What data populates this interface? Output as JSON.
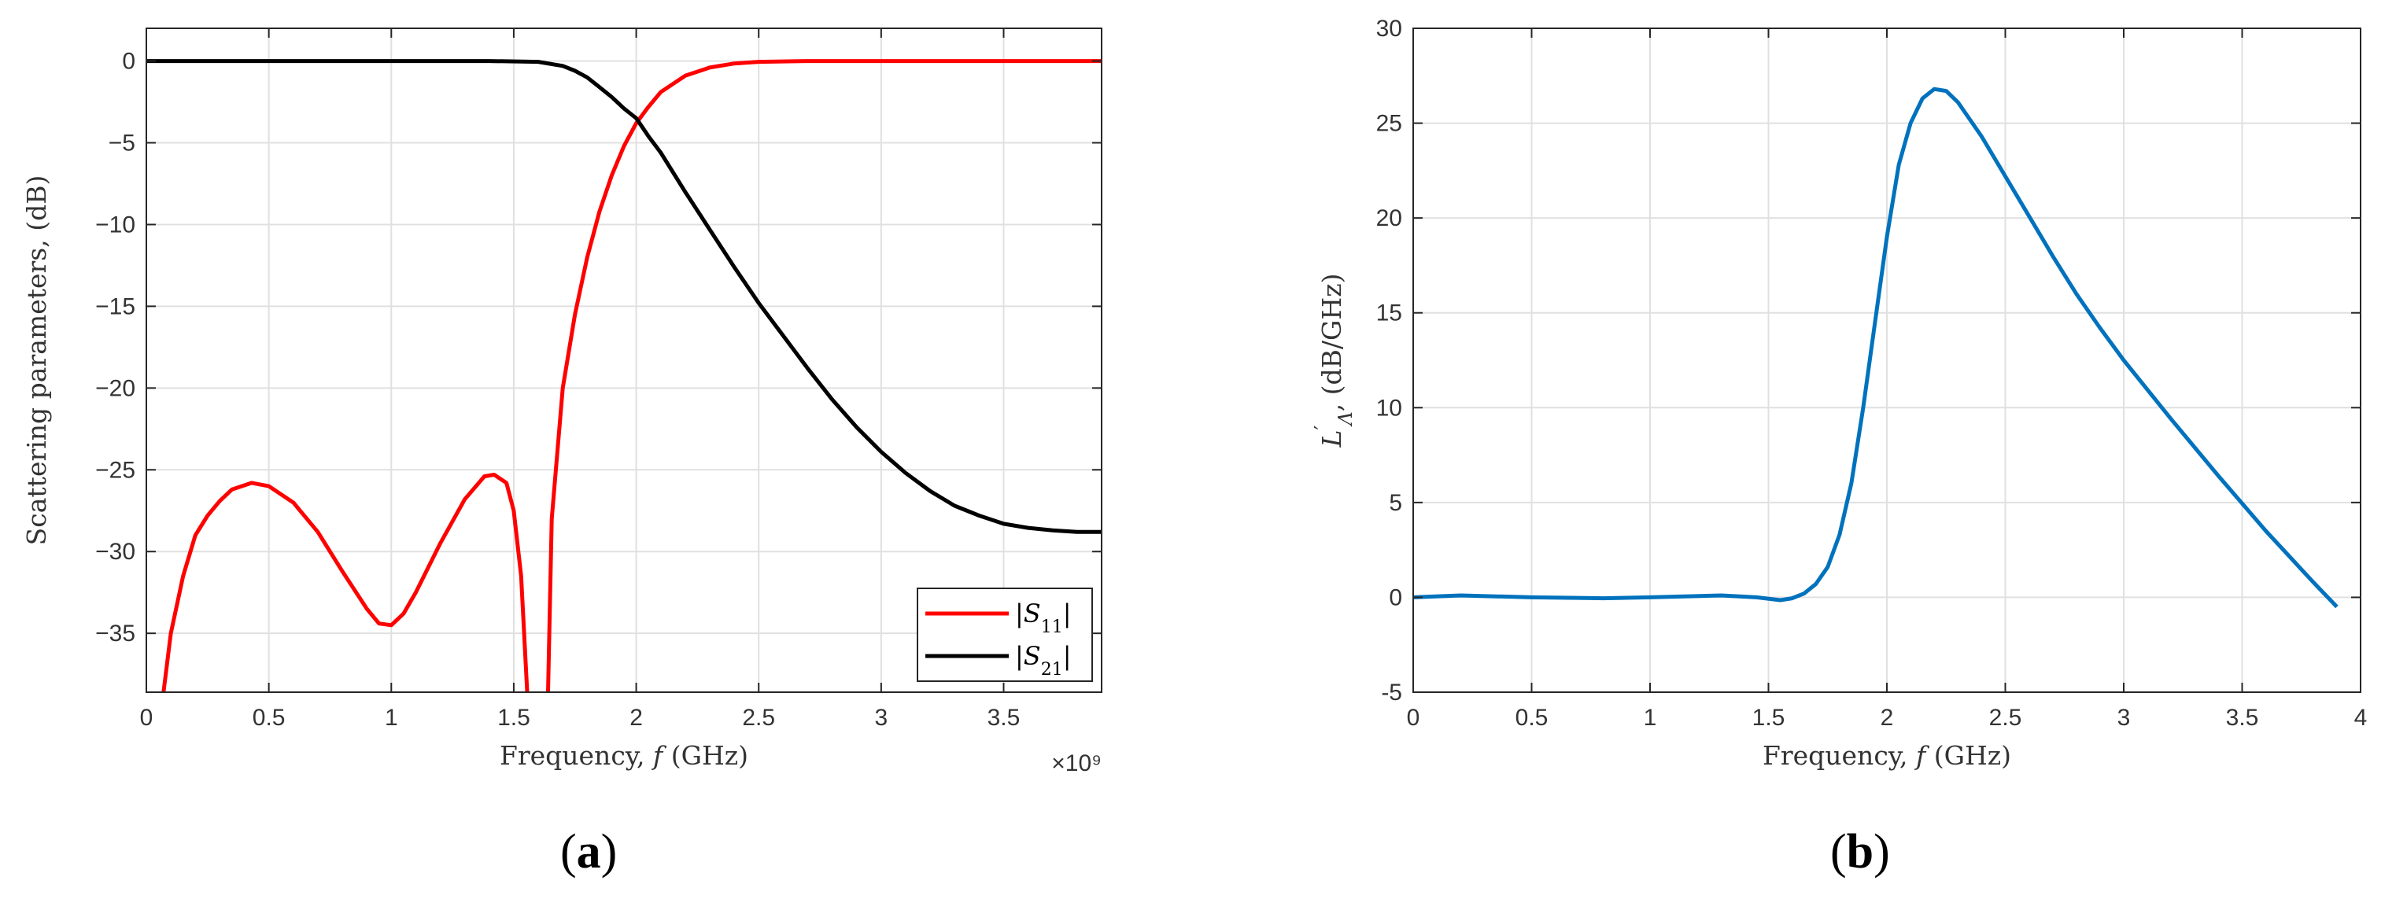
{
  "panels": {
    "a": {
      "label_open": "(",
      "label_letter": "a",
      "label_close": ")"
    },
    "b": {
      "label_open": "(",
      "label_letter": "b",
      "label_close": ")"
    }
  },
  "chart_data": [
    {
      "type": "line",
      "panel": "a",
      "title": "",
      "xlabel": "Frequency, f (GHz)",
      "ylabel": "Scattering parameters, (dB)",
      "x_exponent_label": "×10⁹",
      "xlim": [
        0,
        3900000000.0
      ],
      "ylim": [
        -38.6,
        2.0
      ],
      "xticks": [
        0,
        500000000.0,
        1000000000.0,
        1500000000.0,
        2000000000.0,
        2500000000.0,
        3000000000.0,
        3500000000.0
      ],
      "xtick_labels": [
        "0",
        "0.5",
        "1",
        "1.5",
        "2",
        "2.5",
        "3",
        "3.5"
      ],
      "yticks": [
        0,
        -5,
        -10,
        -15,
        -20,
        -25,
        -30,
        -35
      ],
      "ytick_labels": [
        "0",
        "−5",
        "−10",
        "−15",
        "−20",
        "−25",
        "−30",
        "−35"
      ],
      "grid": true,
      "legend_position": "bottom-right",
      "series": [
        {
          "name": "|S11|",
          "color": "#ff0000",
          "points": [
            [
              70000000.0,
              -38.6
            ],
            [
              100000000.0,
              -35
            ],
            [
              150000000.0,
              -31.5
            ],
            [
              200000000.0,
              -29
            ],
            [
              250000000.0,
              -27.8
            ],
            [
              300000000.0,
              -26.9
            ],
            [
              350000000.0,
              -26.2
            ],
            [
              430000000.0,
              -25.8
            ],
            [
              500000000.0,
              -26.0
            ],
            [
              600000000.0,
              -27.0
            ],
            [
              700000000.0,
              -28.8
            ],
            [
              800000000.0,
              -31.2
            ],
            [
              900000000.0,
              -33.5
            ],
            [
              950000000.0,
              -34.4
            ],
            [
              1000000000.0,
              -34.5
            ],
            [
              1050000000.0,
              -33.8
            ],
            [
              1100000000.0,
              -32.5
            ],
            [
              1200000000.0,
              -29.5
            ],
            [
              1300000000.0,
              -26.8
            ],
            [
              1380000000.0,
              -25.4
            ],
            [
              1420000000.0,
              -25.3
            ],
            [
              1470000000.0,
              -25.8
            ],
            [
              1500000000.0,
              -27.5
            ],
            [
              1530000000.0,
              -31.5
            ],
            [
              1555000000.0,
              -38.6
            ]
          ],
          "points_2": [
            [
              1640000000.0,
              -38.6
            ],
            [
              1655000000.0,
              -28
            ],
            [
              1700000000.0,
              -20
            ],
            [
              1750000000.0,
              -15.5
            ],
            [
              1800000000.0,
              -12
            ],
            [
              1850000000.0,
              -9.2
            ],
            [
              1900000000.0,
              -7.0
            ],
            [
              1950000000.0,
              -5.2
            ],
            [
              2000000000.0,
              -3.8
            ],
            [
              2050000000.0,
              -2.8
            ],
            [
              2100000000.0,
              -1.9
            ],
            [
              2200000000.0,
              -0.9
            ],
            [
              2300000000.0,
              -0.4
            ],
            [
              2400000000.0,
              -0.15
            ],
            [
              2500000000.0,
              -0.05
            ],
            [
              2700000000.0,
              0
            ],
            [
              3000000000.0,
              0
            ],
            [
              3500000000.0,
              0
            ],
            [
              3900000000.0,
              0
            ]
          ]
        },
        {
          "name": "|S21|",
          "color": "#000000",
          "points": [
            [
              0,
              0
            ],
            [
              500000000.0,
              0
            ],
            [
              1000000000.0,
              0
            ],
            [
              1400000000.0,
              0
            ],
            [
              1600000000.0,
              -0.05
            ],
            [
              1700000000.0,
              -0.3
            ],
            [
              1750000000.0,
              -0.6
            ],
            [
              1800000000.0,
              -1.0
            ],
            [
              1850000000.0,
              -1.6
            ],
            [
              1900000000.0,
              -2.2
            ],
            [
              1950000000.0,
              -2.9
            ],
            [
              2000000000.0,
              -3.5
            ],
            [
              2050000000.0,
              -4.6
            ],
            [
              2100000000.0,
              -5.6
            ],
            [
              2200000000.0,
              -8.0
            ],
            [
              2300000000.0,
              -10.3
            ],
            [
              2400000000.0,
              -12.6
            ],
            [
              2500000000.0,
              -14.8
            ],
            [
              2600000000.0,
              -16.8
            ],
            [
              2700000000.0,
              -18.8
            ],
            [
              2800000000.0,
              -20.7
            ],
            [
              2900000000.0,
              -22.4
            ],
            [
              3000000000.0,
              -23.9
            ],
            [
              3100000000.0,
              -25.2
            ],
            [
              3200000000.0,
              -26.3
            ],
            [
              3300000000.0,
              -27.2
            ],
            [
              3400000000.0,
              -27.8
            ],
            [
              3500000000.0,
              -28.3
            ],
            [
              3600000000.0,
              -28.55
            ],
            [
              3700000000.0,
              -28.7
            ],
            [
              3800000000.0,
              -28.8
            ],
            [
              3900000000.0,
              -28.8
            ]
          ]
        }
      ]
    },
    {
      "type": "line",
      "panel": "b",
      "title": "",
      "xlabel": "Frequency, f (GHz)",
      "ylabel": "L′Λ, (dB/GHz)",
      "ylabel_main": "L",
      "ylabel_sup": "′",
      "ylabel_sub": "Λ",
      "ylabel_rest": ", (dB/GHz)",
      "xlim": [
        0,
        4
      ],
      "ylim": [
        -5,
        30
      ],
      "xticks": [
        0,
        0.5,
        1,
        1.5,
        2,
        2.5,
        3,
        3.5,
        4
      ],
      "xtick_labels": [
        "0",
        "0.5",
        "1",
        "1.5",
        "2",
        "2.5",
        "3",
        "3.5",
        "4"
      ],
      "yticks": [
        -5,
        0,
        5,
        10,
        15,
        20,
        25,
        30
      ],
      "ytick_labels": [
        "-5",
        "0",
        "5",
        "10",
        "15",
        "20",
        "25",
        "30"
      ],
      "grid": true,
      "series": [
        {
          "name": "",
          "color": "#0072bd",
          "points": [
            [
              0,
              0
            ],
            [
              0.2,
              0.1
            ],
            [
              0.5,
              0
            ],
            [
              0.8,
              -0.05
            ],
            [
              1.0,
              0
            ],
            [
              1.3,
              0.1
            ],
            [
              1.45,
              0
            ],
            [
              1.55,
              -0.15
            ],
            [
              1.6,
              -0.05
            ],
            [
              1.65,
              0.2
            ],
            [
              1.7,
              0.7
            ],
            [
              1.75,
              1.6
            ],
            [
              1.8,
              3.3
            ],
            [
              1.85,
              6.0
            ],
            [
              1.9,
              10.0
            ],
            [
              1.95,
              14.5
            ],
            [
              2.0,
              19.0
            ],
            [
              2.05,
              22.8
            ],
            [
              2.1,
              25.0
            ],
            [
              2.15,
              26.3
            ],
            [
              2.2,
              26.8
            ],
            [
              2.25,
              26.7
            ],
            [
              2.3,
              26.1
            ],
            [
              2.4,
              24.3
            ],
            [
              2.5,
              22.2
            ],
            [
              2.6,
              20.1
            ],
            [
              2.7,
              18.0
            ],
            [
              2.8,
              16.0
            ],
            [
              2.9,
              14.2
            ],
            [
              3.0,
              12.5
            ],
            [
              3.2,
              9.4
            ],
            [
              3.4,
              6.4
            ],
            [
              3.6,
              3.5
            ],
            [
              3.8,
              0.8
            ],
            [
              3.9,
              -0.5
            ]
          ]
        }
      ]
    }
  ]
}
